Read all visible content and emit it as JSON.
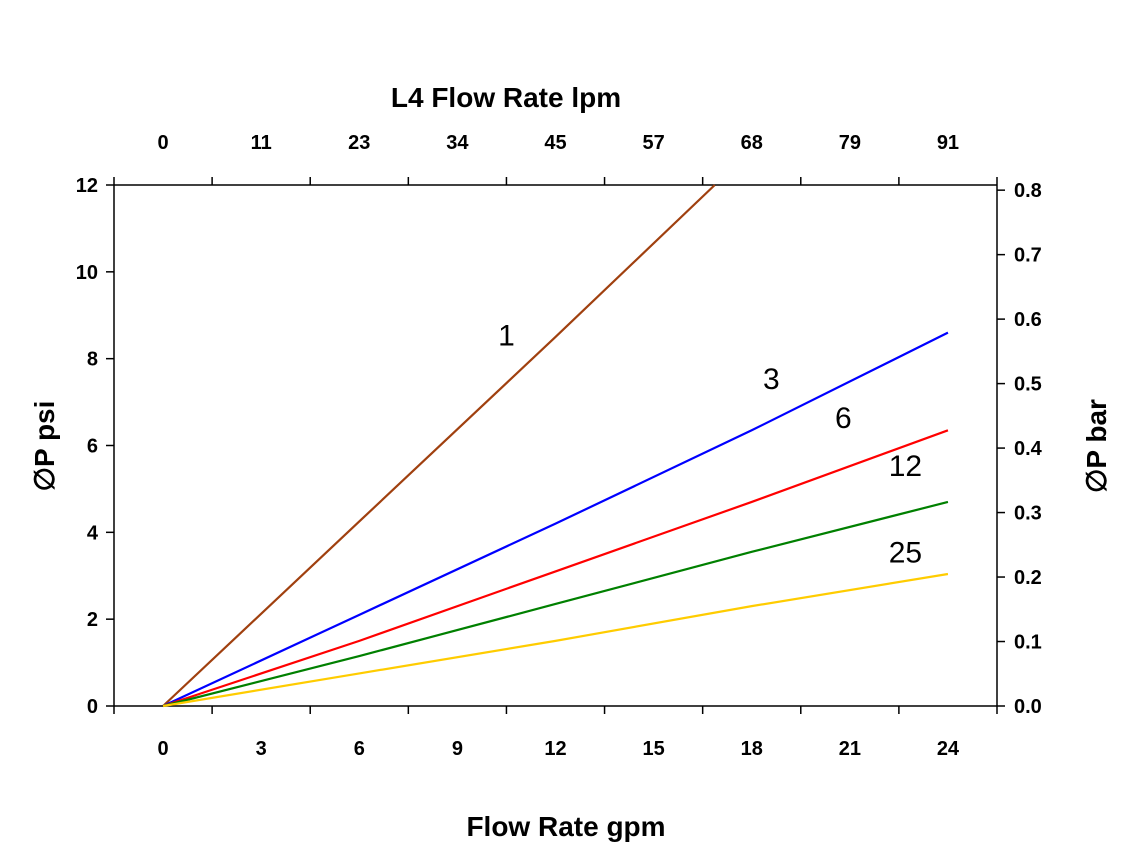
{
  "chart_data": {
    "type": "line",
    "title": "",
    "top_axis": {
      "label": "L4  Flow Rate lpm",
      "ticks": [
        "0",
        "11",
        "23",
        "34",
        "45",
        "57",
        "68",
        "79",
        "91"
      ]
    },
    "xlabel": "Flow Rate gpm",
    "ylabel": "∅P psi",
    "y2label": "∅P bar",
    "xlim": [
      -1.5,
      25.5
    ],
    "ylim": [
      0,
      12
    ],
    "y2lim": [
      0,
      0.808
    ],
    "xticks": [
      0,
      3,
      6,
      9,
      12,
      15,
      18,
      21,
      24
    ],
    "yticks": [
      0,
      2,
      4,
      6,
      8,
      10,
      12
    ],
    "y2ticks": [
      "0.0",
      "0.1",
      "0.2",
      "0.3",
      "0.4",
      "0.5",
      "0.6",
      "0.7",
      "0.8"
    ],
    "grid": false,
    "series": [
      {
        "name": "1",
        "color": "#a0400f",
        "x": [
          0,
          6,
          12,
          16.87
        ],
        "y": [
          0,
          4.25,
          8.5,
          12
        ]
      },
      {
        "name": "3",
        "color": "#0000ff",
        "x": [
          0,
          6,
          12,
          18,
          24
        ],
        "y": [
          0,
          2.1,
          4.2,
          6.35,
          8.6
        ]
      },
      {
        "name": "6",
        "color": "#ff0000",
        "x": [
          0,
          6,
          12,
          18,
          24
        ],
        "y": [
          0,
          1.5,
          3.1,
          4.7,
          6.35
        ]
      },
      {
        "name": "12",
        "color": "#008000",
        "x": [
          0,
          6,
          12,
          18,
          24
        ],
        "y": [
          0,
          1.15,
          2.35,
          3.55,
          4.7
        ]
      },
      {
        "name": "25",
        "color": "#ffcc00",
        "x": [
          0,
          6,
          12,
          18,
          24
        ],
        "y": [
          0,
          0.75,
          1.5,
          2.3,
          3.04
        ]
      }
    ],
    "curve_labels": [
      {
        "text": "1",
        "x": 10.5,
        "y": 8.3
      },
      {
        "text": "3",
        "x": 18.6,
        "y": 7.3
      },
      {
        "text": "6",
        "x": 20.8,
        "y": 6.4
      },
      {
        "text": "12",
        "x": 22.7,
        "y": 5.3
      },
      {
        "text": "25",
        "x": 22.7,
        "y": 3.3
      }
    ]
  }
}
